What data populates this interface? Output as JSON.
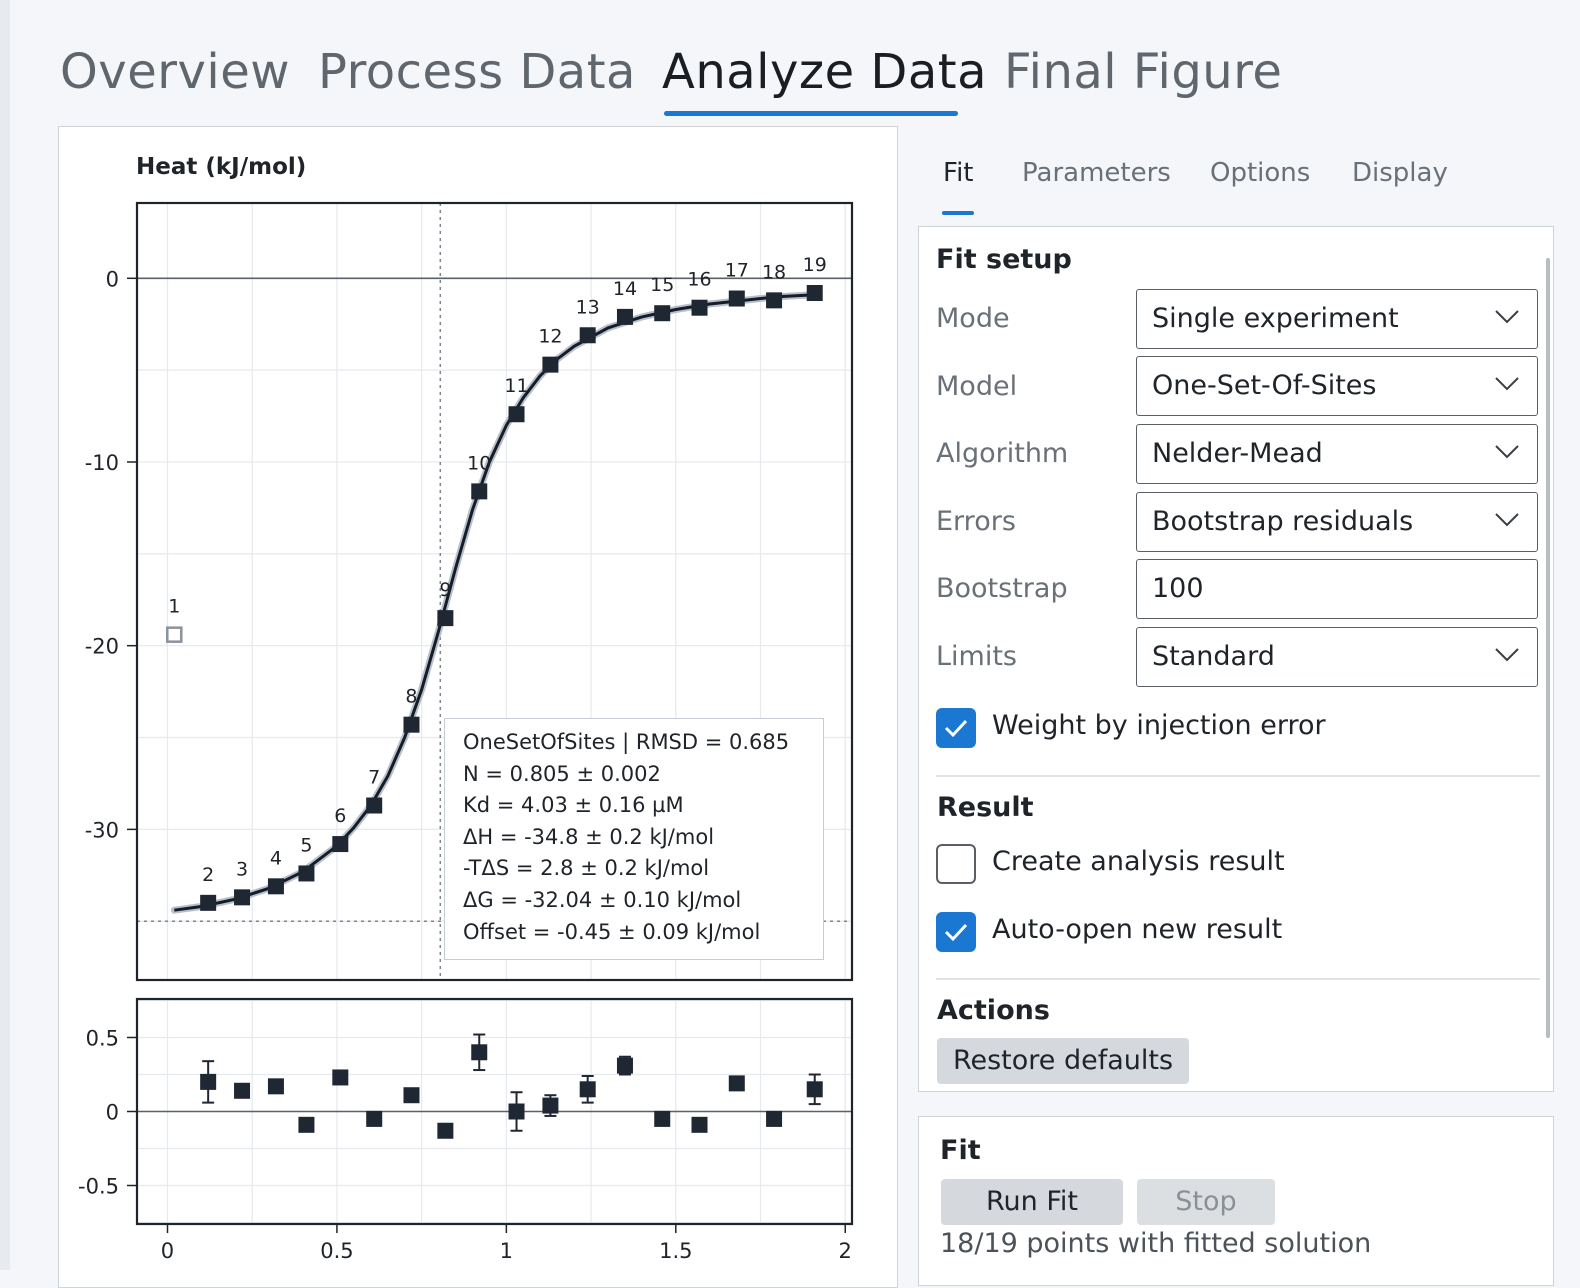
{
  "main_tabs": [
    {
      "label": "Overview",
      "active": false
    },
    {
      "label": "Process Data",
      "active": false
    },
    {
      "label": "Analyze Data",
      "active": true
    },
    {
      "label": "Final Figure",
      "active": false
    }
  ],
  "sub_tabs": [
    {
      "label": "Fit",
      "active": true
    },
    {
      "label": "Parameters",
      "active": false
    },
    {
      "label": "Options",
      "active": false
    },
    {
      "label": "Display",
      "active": false
    }
  ],
  "colors": {
    "accent": "#1a77d2",
    "marker": "#1f2733",
    "fit_line": "#151c2a",
    "excluded_marker": "#8a929c",
    "button_bg": "#d5d8dc"
  },
  "setup": {
    "title": "Fit setup",
    "rows": [
      {
        "label": "Mode",
        "value": "Single experiment",
        "type": "select"
      },
      {
        "label": "Model",
        "value": "One-Set-Of-Sites",
        "type": "select"
      },
      {
        "label": "Algorithm",
        "value": "Nelder-Mead",
        "type": "select"
      },
      {
        "label": "Errors",
        "value": "Bootstrap residuals",
        "type": "select"
      },
      {
        "label": "Bootstrap",
        "value": "100",
        "type": "input"
      },
      {
        "label": "Limits",
        "value": "Standard",
        "type": "select"
      }
    ],
    "weight_checkbox": {
      "label": "Weight by injection error",
      "checked": true
    }
  },
  "result": {
    "title": "Result",
    "create_checkbox": {
      "label": "Create analysis result",
      "checked": false
    },
    "autoopen_checkbox": {
      "label": "Auto-open new result",
      "checked": true
    }
  },
  "actions": {
    "title": "Actions",
    "restore_label": "Restore defaults"
  },
  "fit": {
    "title": "Fit",
    "run_label": "Run Fit",
    "stop_label": "Stop",
    "status": "18/19 points with fitted solution"
  },
  "chart_data": [
    {
      "type": "scatter",
      "ylabel": "Heat (kJ/mol)",
      "xlim": [
        -0.09,
        2.02
      ],
      "ylim": [
        -38.2,
        4.1
      ],
      "yticks": [
        0,
        -10,
        -20,
        -30
      ],
      "ytick_labels": [
        "0",
        "-10",
        "-20",
        "-30"
      ],
      "xticks": [
        0,
        0.5,
        1,
        1.5,
        2
      ],
      "grid": true,
      "reference_lines": {
        "x_dotted": 0.805,
        "y_dotted": -35.0,
        "y_solid": 0
      },
      "points": [
        {
          "label": "1",
          "x": 0.02,
          "y": -19.4,
          "excluded": true
        },
        {
          "label": "2",
          "x": 0.12,
          "y": -34.0
        },
        {
          "label": "3",
          "x": 0.22,
          "y": -33.7
        },
        {
          "label": "4",
          "x": 0.32,
          "y": -33.1
        },
        {
          "label": "5",
          "x": 0.41,
          "y": -32.4
        },
        {
          "label": "6",
          "x": 0.51,
          "y": -30.8
        },
        {
          "label": "7",
          "x": 0.61,
          "y": -28.7
        },
        {
          "label": "8",
          "x": 0.72,
          "y": -24.3
        },
        {
          "label": "9",
          "x": 0.82,
          "y": -18.5
        },
        {
          "label": "10",
          "x": 0.92,
          "y": -11.6
        },
        {
          "label": "11",
          "x": 1.03,
          "y": -7.4
        },
        {
          "label": "12",
          "x": 1.13,
          "y": -4.7
        },
        {
          "label": "13",
          "x": 1.24,
          "y": -3.1
        },
        {
          "label": "14",
          "x": 1.35,
          "y": -2.1
        },
        {
          "label": "15",
          "x": 1.46,
          "y": -1.9
        },
        {
          "label": "16",
          "x": 1.57,
          "y": -1.6
        },
        {
          "label": "17",
          "x": 1.68,
          "y": -1.1
        },
        {
          "label": "18",
          "x": 1.79,
          "y": -1.2
        },
        {
          "label": "19",
          "x": 1.91,
          "y": -0.8
        }
      ],
      "fit_curve": {
        "x": [
          0.02,
          0.1,
          0.2,
          0.3,
          0.4,
          0.5,
          0.55,
          0.6,
          0.65,
          0.7,
          0.75,
          0.8,
          0.85,
          0.9,
          0.95,
          1.0,
          1.05,
          1.1,
          1.15,
          1.2,
          1.3,
          1.4,
          1.5,
          1.6,
          1.7,
          1.8,
          1.91
        ],
        "y": [
          -34.4,
          -34.2,
          -33.8,
          -33.2,
          -32.3,
          -30.9,
          -29.9,
          -28.7,
          -27.1,
          -25.0,
          -22.4,
          -19.2,
          -15.8,
          -12.6,
          -10.0,
          -8.0,
          -6.5,
          -5.3,
          -4.4,
          -3.7,
          -2.7,
          -2.1,
          -1.7,
          -1.4,
          -1.2,
          -1.0,
          -0.9
        ]
      },
      "legend_box": {
        "lines": [
          "OneSetOfSites | RMSD = 0.685",
          "N = 0.805 ± 0.002",
          "Kd = 4.03 ± 0.16 µM",
          "ΔH = -34.8 ± 0.2 kJ/mol",
          "-TΔS = 2.8 ± 0.2 kJ/mol",
          "ΔG = -32.04 ± 0.10 kJ/mol",
          "Offset = -0.45 ± 0.09 kJ/mol"
        ],
        "placement": "bottom-right"
      }
    },
    {
      "type": "scatter",
      "ylabel": "",
      "xlim": [
        -0.09,
        2.02
      ],
      "ylim": [
        -0.76,
        0.76
      ],
      "yticks": [
        0.5,
        0,
        -0.5
      ],
      "ytick_labels": [
        "0.5",
        "0",
        "-0.5"
      ],
      "xticks": [
        0,
        0.5,
        1,
        1.5,
        2
      ],
      "xtick_labels": [
        "0",
        "0.5",
        "1",
        "1.5",
        "2"
      ],
      "grid": true,
      "points": [
        {
          "x": 0.12,
          "y": 0.2,
          "err": 0.14
        },
        {
          "x": 0.22,
          "y": 0.14
        },
        {
          "x": 0.32,
          "y": 0.17
        },
        {
          "x": 0.41,
          "y": -0.09
        },
        {
          "x": 0.51,
          "y": 0.23
        },
        {
          "x": 0.61,
          "y": -0.05
        },
        {
          "x": 0.72,
          "y": 0.11
        },
        {
          "x": 0.82,
          "y": -0.13
        },
        {
          "x": 0.92,
          "y": 0.4,
          "err": 0.12
        },
        {
          "x": 1.03,
          "y": 0.0,
          "err": 0.13
        },
        {
          "x": 1.13,
          "y": 0.04,
          "err": 0.07
        },
        {
          "x": 1.24,
          "y": 0.15,
          "err": 0.09
        },
        {
          "x": 1.35,
          "y": 0.31,
          "err": 0.06
        },
        {
          "x": 1.46,
          "y": -0.05
        },
        {
          "x": 1.57,
          "y": -0.09
        },
        {
          "x": 1.68,
          "y": 0.19
        },
        {
          "x": 1.79,
          "y": -0.05
        },
        {
          "x": 1.91,
          "y": 0.15,
          "err": 0.1
        }
      ]
    }
  ]
}
